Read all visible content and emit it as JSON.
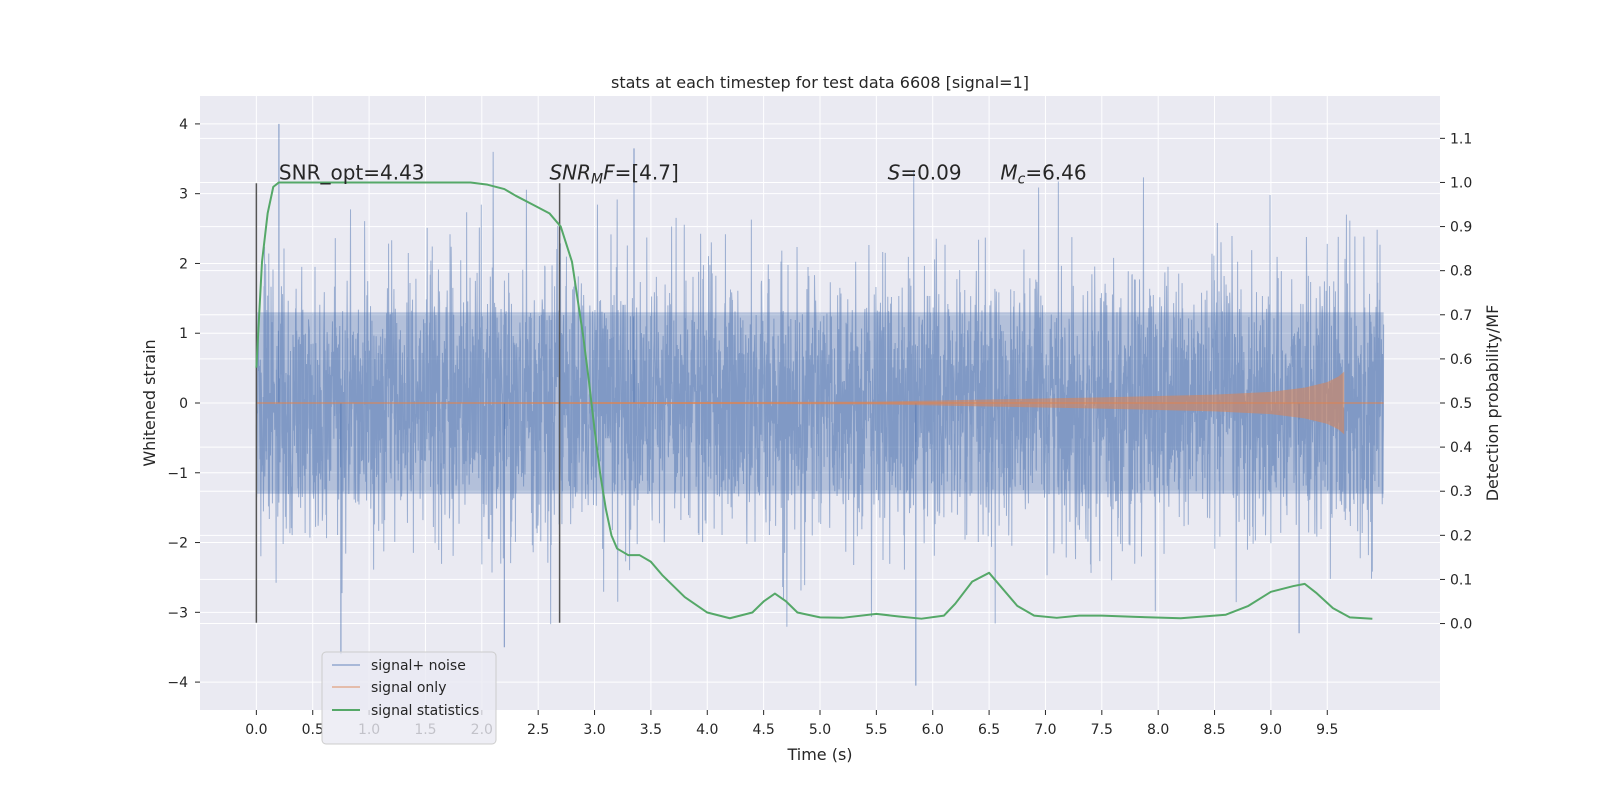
{
  "chart_data": {
    "type": "line",
    "title": "stats at each timestep for test data 6608 [signal=1]",
    "xlabel": "Time (s)",
    "ylabel": "Whitened strain",
    "ylabel_right": "Detection probability/MF",
    "xlim": [
      -0.5,
      10.5
    ],
    "ylim": [
      -4.4,
      4.4
    ],
    "ylim_right": [
      -0.196,
      1.196
    ],
    "x_ticks": [
      0.0,
      0.5,
      1.0,
      1.5,
      2.0,
      2.5,
      3.0,
      3.5,
      4.0,
      4.5,
      5.0,
      5.5,
      6.0,
      6.5,
      7.0,
      7.5,
      8.0,
      8.5,
      9.0,
      9.5
    ],
    "x_tick_labels": [
      "0.0",
      "0.5",
      "1.0",
      "1.5",
      "2.0",
      "2.5",
      "3.0",
      "3.5",
      "4.0",
      "4.5",
      "5.0",
      "5.5",
      "6.0",
      "6.5",
      "7.0",
      "7.5",
      "8.0",
      "8.5",
      "9.0",
      "9.5"
    ],
    "y_ticks": [
      4,
      3,
      2,
      1,
      0,
      -1,
      -2,
      -3,
      -4
    ],
    "y_tick_labels": [
      "4",
      "3",
      "2",
      "1",
      "0",
      "−1",
      "−2",
      "−3",
      "−4"
    ],
    "y_ticks_right": [
      1.1,
      1.0,
      0.9,
      0.8,
      0.7,
      0.6,
      0.5,
      0.4,
      0.3,
      0.2,
      0.1,
      0.0
    ],
    "y_tick_labels_right": [
      "1.1",
      "1.0",
      "0.9",
      "0.8",
      "0.7",
      "0.6",
      "0.5",
      "0.4",
      "0.3",
      "0.2",
      "0.1",
      "0.0"
    ],
    "grid": true,
    "legend_position": "lower-left",
    "annotations": [
      {
        "text": "SNR_opt=4.43",
        "x": 0.2,
        "y": 3.2
      },
      {
        "text": "SNRMF=[4.7]",
        "x": 2.6,
        "y": 3.2
      },
      {
        "text": "S=0.09",
        "x": 5.6,
        "y": 3.2
      },
      {
        "text": "Mc=6.46",
        "x": 6.6,
        "y": 3.2
      }
    ],
    "vlines": [
      {
        "x": 0.0,
        "y_range": [
          -3.15,
          3.15
        ]
      },
      {
        "x": 2.69,
        "y_range": [
          -3.15,
          3.15
        ]
      }
    ],
    "series": [
      {
        "name": "signal+ noise",
        "color": "#4c72b0",
        "x_range": [
          0.0,
          10.0
        ],
        "envelope_core": 1.3,
        "peak_max": 4.0,
        "peak_min": -4.05,
        "note_values": "dense noise trace"
      },
      {
        "name": "signal only",
        "color": "#dd8452",
        "x": [
          0.0,
          5.5,
          6.5,
          7.5,
          8.5,
          9.0,
          9.3,
          9.5,
          9.6,
          9.65
        ],
        "amplitude": [
          0.0,
          0.02,
          0.05,
          0.08,
          0.12,
          0.16,
          0.22,
          0.3,
          0.38,
          0.45
        ]
      },
      {
        "name": "signal statistics",
        "color": "#55a868",
        "x": [
          0.0,
          0.05,
          0.1,
          0.15,
          0.2,
          0.3,
          0.5,
          1.0,
          1.5,
          1.9,
          2.05,
          2.2,
          2.3,
          2.45,
          2.6,
          2.7,
          2.8,
          2.9,
          2.95,
          3.0,
          3.05,
          3.1,
          3.15,
          3.2,
          3.3,
          3.4,
          3.5,
          3.6,
          3.8,
          4.0,
          4.2,
          4.4,
          4.5,
          4.6,
          4.7,
          4.8,
          5.0,
          5.2,
          5.5,
          5.7,
          5.9,
          6.1,
          6.2,
          6.35,
          6.5,
          6.6,
          6.75,
          6.9,
          7.1,
          7.3,
          7.5,
          7.8,
          8.2,
          8.6,
          8.8,
          9.0,
          9.2,
          9.3,
          9.4,
          9.55,
          9.7,
          9.9
        ],
        "y": [
          0.58,
          0.82,
          0.93,
          0.99,
          1.0,
          1.0,
          1.0,
          1.0,
          1.0,
          1.0,
          0.995,
          0.985,
          0.97,
          0.95,
          0.93,
          0.9,
          0.82,
          0.65,
          0.55,
          0.44,
          0.34,
          0.26,
          0.2,
          0.17,
          0.155,
          0.155,
          0.14,
          0.11,
          0.06,
          0.025,
          0.012,
          0.025,
          0.05,
          0.068,
          0.05,
          0.025,
          0.014,
          0.013,
          0.022,
          0.016,
          0.011,
          0.018,
          0.045,
          0.095,
          0.115,
          0.085,
          0.04,
          0.018,
          0.013,
          0.018,
          0.018,
          0.015,
          0.012,
          0.02,
          0.04,
          0.072,
          0.085,
          0.09,
          0.07,
          0.035,
          0.014,
          0.011
        ]
      }
    ]
  },
  "legend": {
    "items": [
      {
        "label": "signal+ noise",
        "color": "#4c72b0"
      },
      {
        "label": "signal only",
        "color": "#dd8452"
      },
      {
        "label": "signal statistics",
        "color": "#55a868"
      }
    ]
  }
}
